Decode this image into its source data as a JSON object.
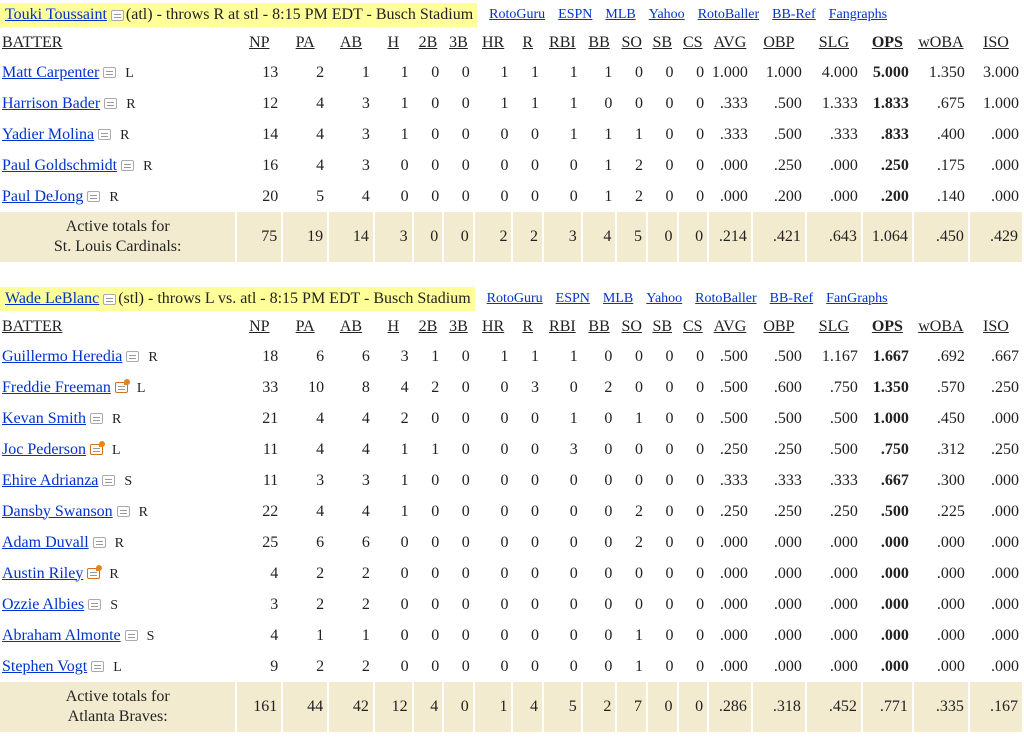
{
  "section1": {
    "pitcher_link": "Touki Toussaint",
    "pitcher_info": "(atl) - throws R at stl - 8:15 PM EDT - Busch Stadium",
    "links": [
      "RotoGuru",
      "ESPN",
      "MLB",
      "Yahoo",
      "RotoBaller",
      "BB-Ref",
      "Fangraphs"
    ],
    "columns": [
      "BATTER",
      "NP",
      "PA",
      "AB",
      "H",
      "2B",
      "3B",
      "HR",
      "R",
      "RBI",
      "BB",
      "SO",
      "SB",
      "CS",
      "AVG",
      "OBP",
      "SLG",
      "OPS",
      "wOBA",
      "ISO"
    ],
    "rows": [
      {
        "name": "Matt Carpenter",
        "icon": "note-icon",
        "hand": "L",
        "stats": [
          "13",
          "2",
          "1",
          "1",
          "0",
          "0",
          "1",
          "1",
          "1",
          "1",
          "0",
          "0",
          "0",
          "1.000",
          "1.000",
          "4.000",
          "5.000",
          "1.350",
          "3.000"
        ]
      },
      {
        "name": "Harrison Bader",
        "icon": "note-icon",
        "hand": "R",
        "stats": [
          "12",
          "4",
          "3",
          "1",
          "0",
          "0",
          "1",
          "1",
          "1",
          "0",
          "0",
          "0",
          "0",
          ".333",
          ".500",
          "1.333",
          "1.833",
          ".675",
          "1.000"
        ]
      },
      {
        "name": "Yadier Molina",
        "icon": "note-icon",
        "hand": "R",
        "stats": [
          "14",
          "4",
          "3",
          "1",
          "0",
          "0",
          "0",
          "0",
          "1",
          "1",
          "1",
          "0",
          "0",
          ".333",
          ".500",
          ".333",
          ".833",
          ".400",
          ".000"
        ]
      },
      {
        "name": "Paul Goldschmidt",
        "icon": "note-icon",
        "hand": "R",
        "stats": [
          "16",
          "4",
          "3",
          "0",
          "0",
          "0",
          "0",
          "0",
          "0",
          "1",
          "2",
          "0",
          "0",
          ".000",
          ".250",
          ".000",
          ".250",
          ".175",
          ".000"
        ]
      },
      {
        "name": "Paul DeJong",
        "icon": "note-icon",
        "hand": "R",
        "stats": [
          "20",
          "5",
          "4",
          "0",
          "0",
          "0",
          "0",
          "0",
          "0",
          "1",
          "2",
          "0",
          "0",
          ".000",
          ".200",
          ".000",
          ".200",
          ".140",
          ".000"
        ]
      }
    ],
    "totals_label_1": "Active totals for",
    "totals_label_2": "St. Louis Cardinals:",
    "totals": [
      "75",
      "19",
      "14",
      "3",
      "0",
      "0",
      "2",
      "2",
      "3",
      "4",
      "5",
      "0",
      "0",
      ".214",
      ".421",
      ".643",
      "1.064",
      ".450",
      ".429"
    ]
  },
  "section2": {
    "pitcher_link": "Wade LeBlanc",
    "pitcher_info": "(stl) - throws L vs. atl - 8:15 PM EDT - Busch Stadium",
    "links": [
      "RotoGuru",
      "ESPN",
      "MLB",
      "Yahoo",
      "RotoBaller",
      "BB-Ref",
      "FanGraphs"
    ],
    "columns": [
      "BATTER",
      "NP",
      "PA",
      "AB",
      "H",
      "2B",
      "3B",
      "HR",
      "R",
      "RBI",
      "BB",
      "SO",
      "SB",
      "CS",
      "AVG",
      "OBP",
      "SLG",
      "OPS",
      "wOBA",
      "ISO"
    ],
    "rows": [
      {
        "name": "Guillermo Heredia",
        "icon": "note-icon",
        "hand": "R",
        "stats": [
          "18",
          "6",
          "6",
          "3",
          "1",
          "0",
          "1",
          "1",
          "1",
          "0",
          "0",
          "0",
          "0",
          ".500",
          ".500",
          "1.167",
          "1.667",
          ".692",
          ".667"
        ]
      },
      {
        "name": "Freddie Freeman",
        "icon": "hot-note-icon",
        "hand": "L",
        "stats": [
          "33",
          "10",
          "8",
          "4",
          "2",
          "0",
          "0",
          "3",
          "0",
          "2",
          "0",
          "0",
          "0",
          ".500",
          ".600",
          ".750",
          "1.350",
          ".570",
          ".250"
        ]
      },
      {
        "name": "Kevan Smith",
        "icon": "note-icon",
        "hand": "R",
        "stats": [
          "21",
          "4",
          "4",
          "2",
          "0",
          "0",
          "0",
          "0",
          "1",
          "0",
          "1",
          "0",
          "0",
          ".500",
          ".500",
          ".500",
          "1.000",
          ".450",
          ".000"
        ]
      },
      {
        "name": "Joc Pederson",
        "icon": "hot-note-icon",
        "hand": "L",
        "stats": [
          "11",
          "4",
          "4",
          "1",
          "1",
          "0",
          "0",
          "0",
          "3",
          "0",
          "0",
          "0",
          "0",
          ".250",
          ".250",
          ".500",
          ".750",
          ".312",
          ".250"
        ]
      },
      {
        "name": "Ehire Adrianza",
        "icon": "note-icon",
        "hand": "S",
        "stats": [
          "11",
          "3",
          "3",
          "1",
          "0",
          "0",
          "0",
          "0",
          "0",
          "0",
          "0",
          "0",
          "0",
          ".333",
          ".333",
          ".333",
          ".667",
          ".300",
          ".000"
        ]
      },
      {
        "name": "Dansby Swanson",
        "icon": "note-icon",
        "hand": "R",
        "stats": [
          "22",
          "4",
          "4",
          "1",
          "0",
          "0",
          "0",
          "0",
          "0",
          "0",
          "2",
          "0",
          "0",
          ".250",
          ".250",
          ".250",
          ".500",
          ".225",
          ".000"
        ]
      },
      {
        "name": "Adam Duvall",
        "icon": "note-icon",
        "hand": "R",
        "stats": [
          "25",
          "6",
          "6",
          "0",
          "0",
          "0",
          "0",
          "0",
          "0",
          "0",
          "2",
          "0",
          "0",
          ".000",
          ".000",
          ".000",
          ".000",
          ".000",
          ".000"
        ]
      },
      {
        "name": "Austin Riley",
        "icon": "hot-note-icon",
        "hand": "R",
        "stats": [
          "4",
          "2",
          "2",
          "0",
          "0",
          "0",
          "0",
          "0",
          "0",
          "0",
          "0",
          "0",
          "0",
          ".000",
          ".000",
          ".000",
          ".000",
          ".000",
          ".000"
        ]
      },
      {
        "name": "Ozzie Albies",
        "icon": "note-icon",
        "hand": "S",
        "stats": [
          "3",
          "2",
          "2",
          "0",
          "0",
          "0",
          "0",
          "0",
          "0",
          "0",
          "0",
          "0",
          "0",
          ".000",
          ".000",
          ".000",
          ".000",
          ".000",
          ".000"
        ]
      },
      {
        "name": "Abraham Almonte",
        "icon": "note-icon",
        "hand": "S",
        "stats": [
          "4",
          "1",
          "1",
          "0",
          "0",
          "0",
          "0",
          "0",
          "0",
          "0",
          "1",
          "0",
          "0",
          ".000",
          ".000",
          ".000",
          ".000",
          ".000",
          ".000"
        ]
      },
      {
        "name": "Stephen Vogt",
        "icon": "note-icon",
        "hand": "L",
        "stats": [
          "9",
          "2",
          "2",
          "0",
          "0",
          "0",
          "0",
          "0",
          "0",
          "0",
          "1",
          "0",
          "0",
          ".000",
          ".000",
          ".000",
          ".000",
          ".000",
          ".000"
        ]
      }
    ],
    "totals_label_1": "Active totals for",
    "totals_label_2": "Atlanta Braves:",
    "totals": [
      "161",
      "44",
      "42",
      "12",
      "4",
      "0",
      "1",
      "4",
      "5",
      "2",
      "7",
      "0",
      "0",
      ".286",
      ".318",
      ".452",
      ".771",
      ".335",
      ".167"
    ]
  }
}
